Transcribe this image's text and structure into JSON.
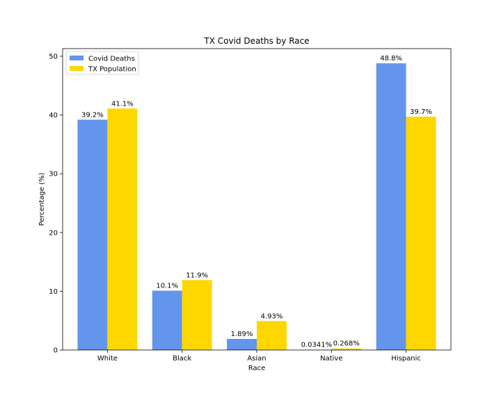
{
  "chart_data": {
    "type": "bar",
    "title": "TX Covid Deaths by Race",
    "xlabel": "Race",
    "ylabel": "Percentage (%)",
    "categories": [
      "White",
      "Black",
      "Asian",
      "Native",
      "Hispanic"
    ],
    "series": [
      {
        "name": "Covid Deaths",
        "color": "#6495ED",
        "values": [
          39.2,
          10.1,
          1.89,
          0.0341,
          48.8
        ],
        "labels": [
          "39.2%",
          "10.1%",
          "1.89%",
          "0.0341%",
          "48.8%"
        ]
      },
      {
        "name": "TX Population",
        "color": "#FFD700",
        "values": [
          41.1,
          11.9,
          4.93,
          0.268,
          39.7
        ],
        "labels": [
          "41.1%",
          "11.9%",
          "4.93%",
          "0.268%",
          "39.7%"
        ]
      }
    ],
    "ylim": [
      0,
      51.3
    ],
    "yticks": [
      0,
      10,
      20,
      30,
      40,
      50
    ],
    "grid": false,
    "legend": "upper-left"
  }
}
